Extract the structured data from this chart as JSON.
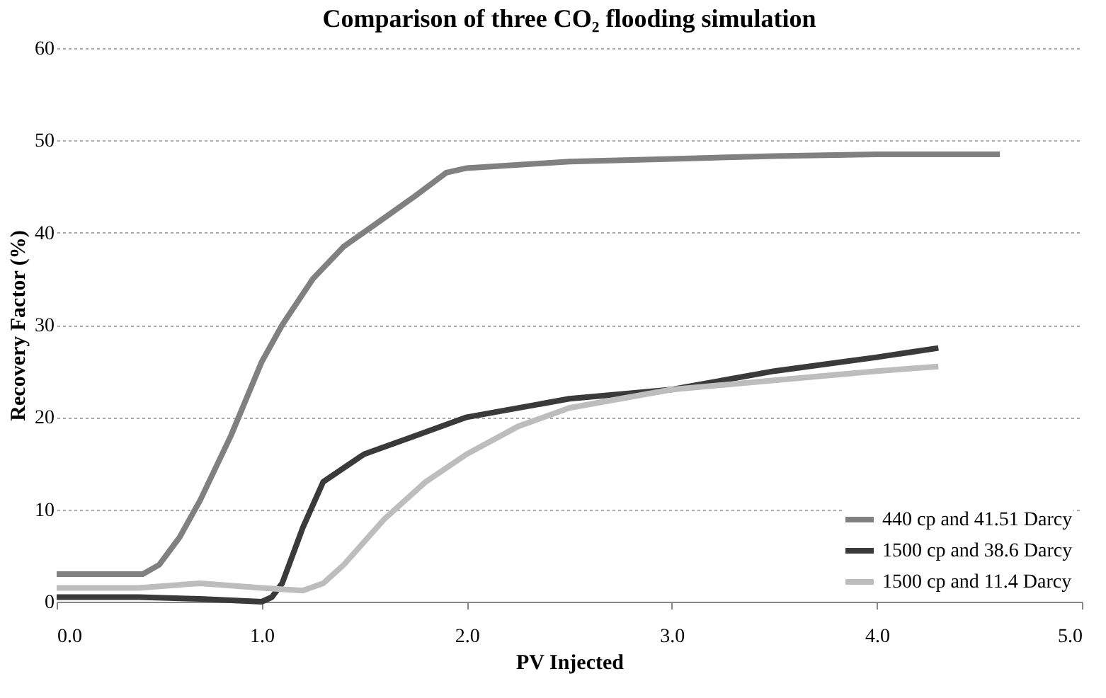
{
  "chart_data": {
    "type": "line",
    "title": "Comparison of three CO₂ flooding simulation",
    "xlabel": "PV Injected",
    "ylabel": "Recovery Factor (%)",
    "xlim": [
      0,
      5
    ],
    "xticks": [
      {
        "value": 0,
        "label": "0.0"
      },
      {
        "value": 1,
        "label": "1.0"
      },
      {
        "value": 2,
        "label": "2.0"
      },
      {
        "value": 3,
        "label": "3.0"
      },
      {
        "value": 4,
        "label": "4.0"
      },
      {
        "value": 5,
        "label": "5.0"
      }
    ],
    "ylim": [
      0,
      60
    ],
    "yticks": [
      0,
      10,
      20,
      30,
      40,
      50,
      60
    ],
    "grid": "y",
    "legend": "bottom right",
    "line_style": "solid",
    "marker": "none",
    "series": [
      {
        "name": "440 cp and 41.51 Darcy",
        "color": "#808080",
        "x": [
          0,
          0.42,
          0.5,
          0.6,
          0.7,
          0.85,
          1.0,
          1.1,
          1.25,
          1.4,
          1.56,
          1.75,
          1.9,
          2.0,
          2.5,
          3.0,
          3.5,
          4.0,
          4.6
        ],
        "values": [
          3,
          3,
          4,
          7,
          11,
          18,
          26,
          30,
          35,
          38.5,
          41,
          44,
          46.5,
          47,
          47.7,
          48,
          48.3,
          48.5,
          48.5
        ]
      },
      {
        "name": "1500 cp and 38.6 Darcy",
        "color": "#3a3a3a",
        "x": [
          0,
          0.4,
          0.7,
          1.0,
          1.05,
          1.1,
          1.2,
          1.3,
          1.5,
          1.75,
          2.0,
          2.5,
          3.0,
          3.5,
          4.0,
          4.3
        ],
        "values": [
          0.5,
          0.5,
          0.3,
          0,
          0.5,
          2,
          8,
          13,
          16,
          18,
          20,
          22,
          23,
          25,
          26.5,
          27.5
        ]
      },
      {
        "name": "1500 cp and 11.4 Darcy",
        "color": "#bdbdbd",
        "x": [
          0,
          0.4,
          0.7,
          1.0,
          1.2,
          1.3,
          1.4,
          1.6,
          1.8,
          2.0,
          2.25,
          2.5,
          3.0,
          3.5,
          4.0,
          4.3
        ],
        "values": [
          1.5,
          1.5,
          2,
          1.5,
          1.2,
          2,
          4,
          9,
          13,
          16,
          19,
          21,
          23,
          24,
          25,
          25.5
        ]
      }
    ]
  }
}
